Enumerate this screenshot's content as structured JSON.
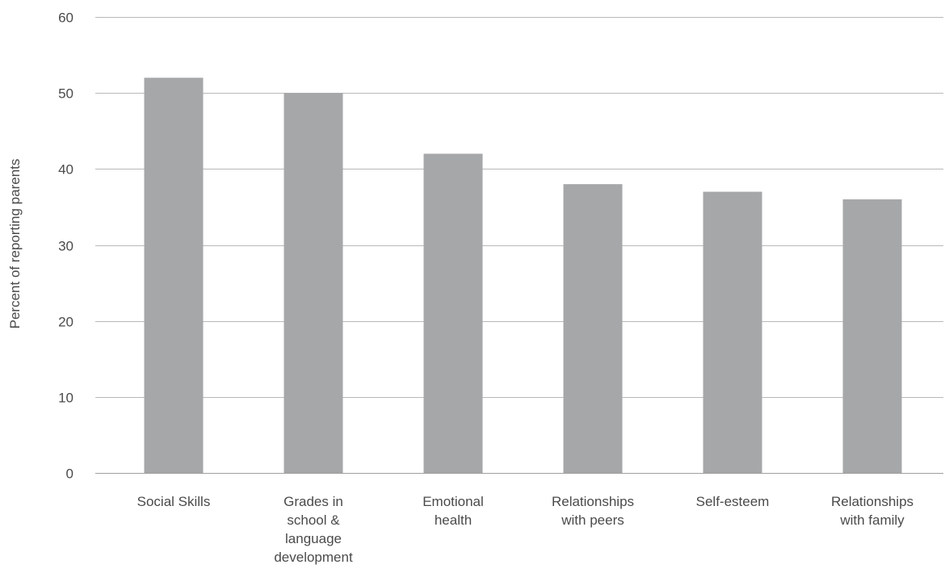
{
  "chart_data": {
    "type": "bar",
    "title": "",
    "xlabel": "",
    "ylabel": "Percent of reporting parents",
    "ylim": [
      0,
      60
    ],
    "yticks": [
      0,
      10,
      20,
      30,
      40,
      50,
      60
    ],
    "grid": true,
    "legend": "none",
    "bar_color": "#a6a7a9",
    "categories": [
      [
        "Social Skills"
      ],
      [
        "Grades in",
        "school &",
        "language",
        "development"
      ],
      [
        "Emotional",
        "health"
      ],
      [
        "Relationships",
        "with peers"
      ],
      [
        "Self-esteem"
      ],
      [
        "Relationships",
        "with family"
      ]
    ],
    "values": [
      52,
      50,
      42,
      38,
      37,
      36
    ]
  }
}
